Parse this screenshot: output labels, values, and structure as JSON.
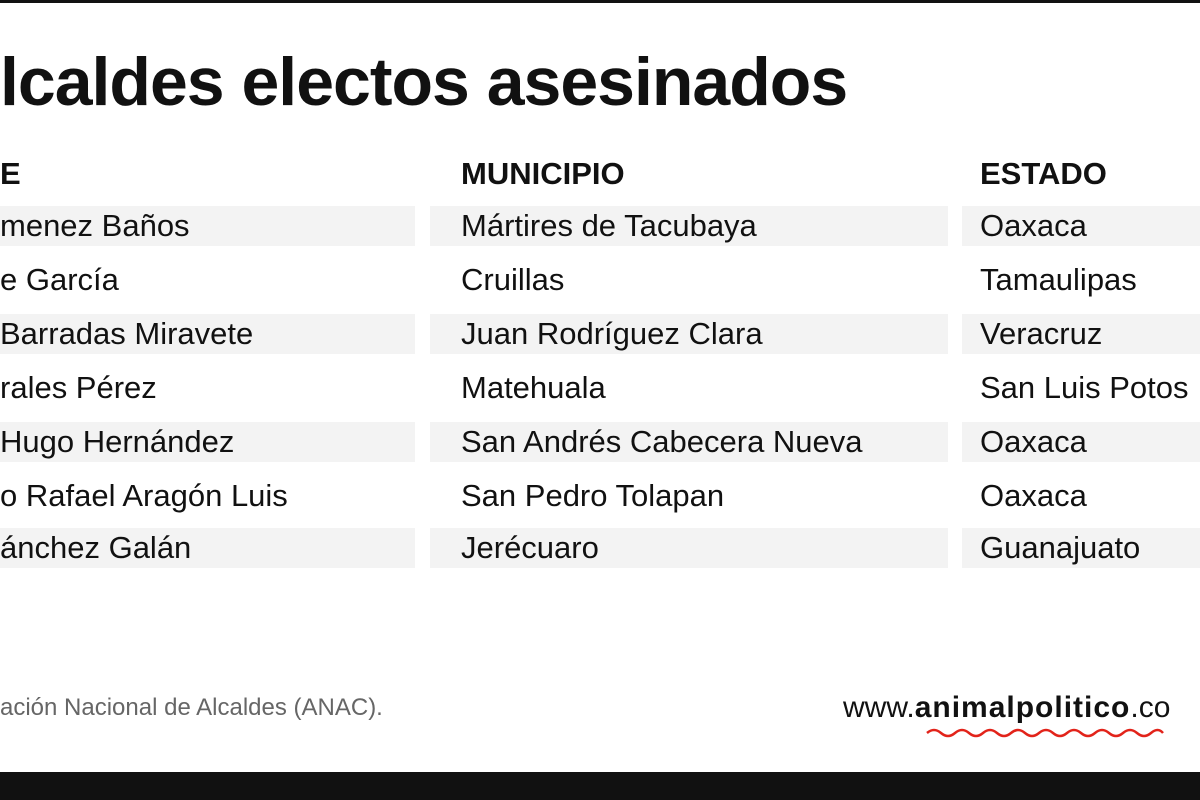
{
  "title": "lcaldes electos asesinados",
  "table": {
    "headers": [
      "E",
      "MUNICIPIO",
      "ESTADO"
    ],
    "rows": [
      [
        "menez Baños",
        "Mártires de Tacubaya",
        "Oaxaca"
      ],
      [
        "e García",
        "Cruillas",
        "Tamaulipas"
      ],
      [
        "Barradas Miravete",
        "Juan Rodríguez Clara",
        "Veracruz"
      ],
      [
        "rales Pérez",
        "Matehuala",
        "San Luis Potos"
      ],
      [
        "Hugo Hernández",
        "San Andrés Cabecera Nueva",
        "Oaxaca"
      ],
      [
        "o Rafael Aragón Luis",
        "San Pedro Tolapan",
        "Oaxaca"
      ],
      [
        "ánchez Galán",
        "Jerécuaro",
        "Guanajuato"
      ]
    ]
  },
  "footer": {
    "source": "ación Nacional de Alcaldes (ANAC).",
    "brand": {
      "prefix": "www.",
      "name": "animalpolitico",
      "suffix": ".co"
    }
  }
}
